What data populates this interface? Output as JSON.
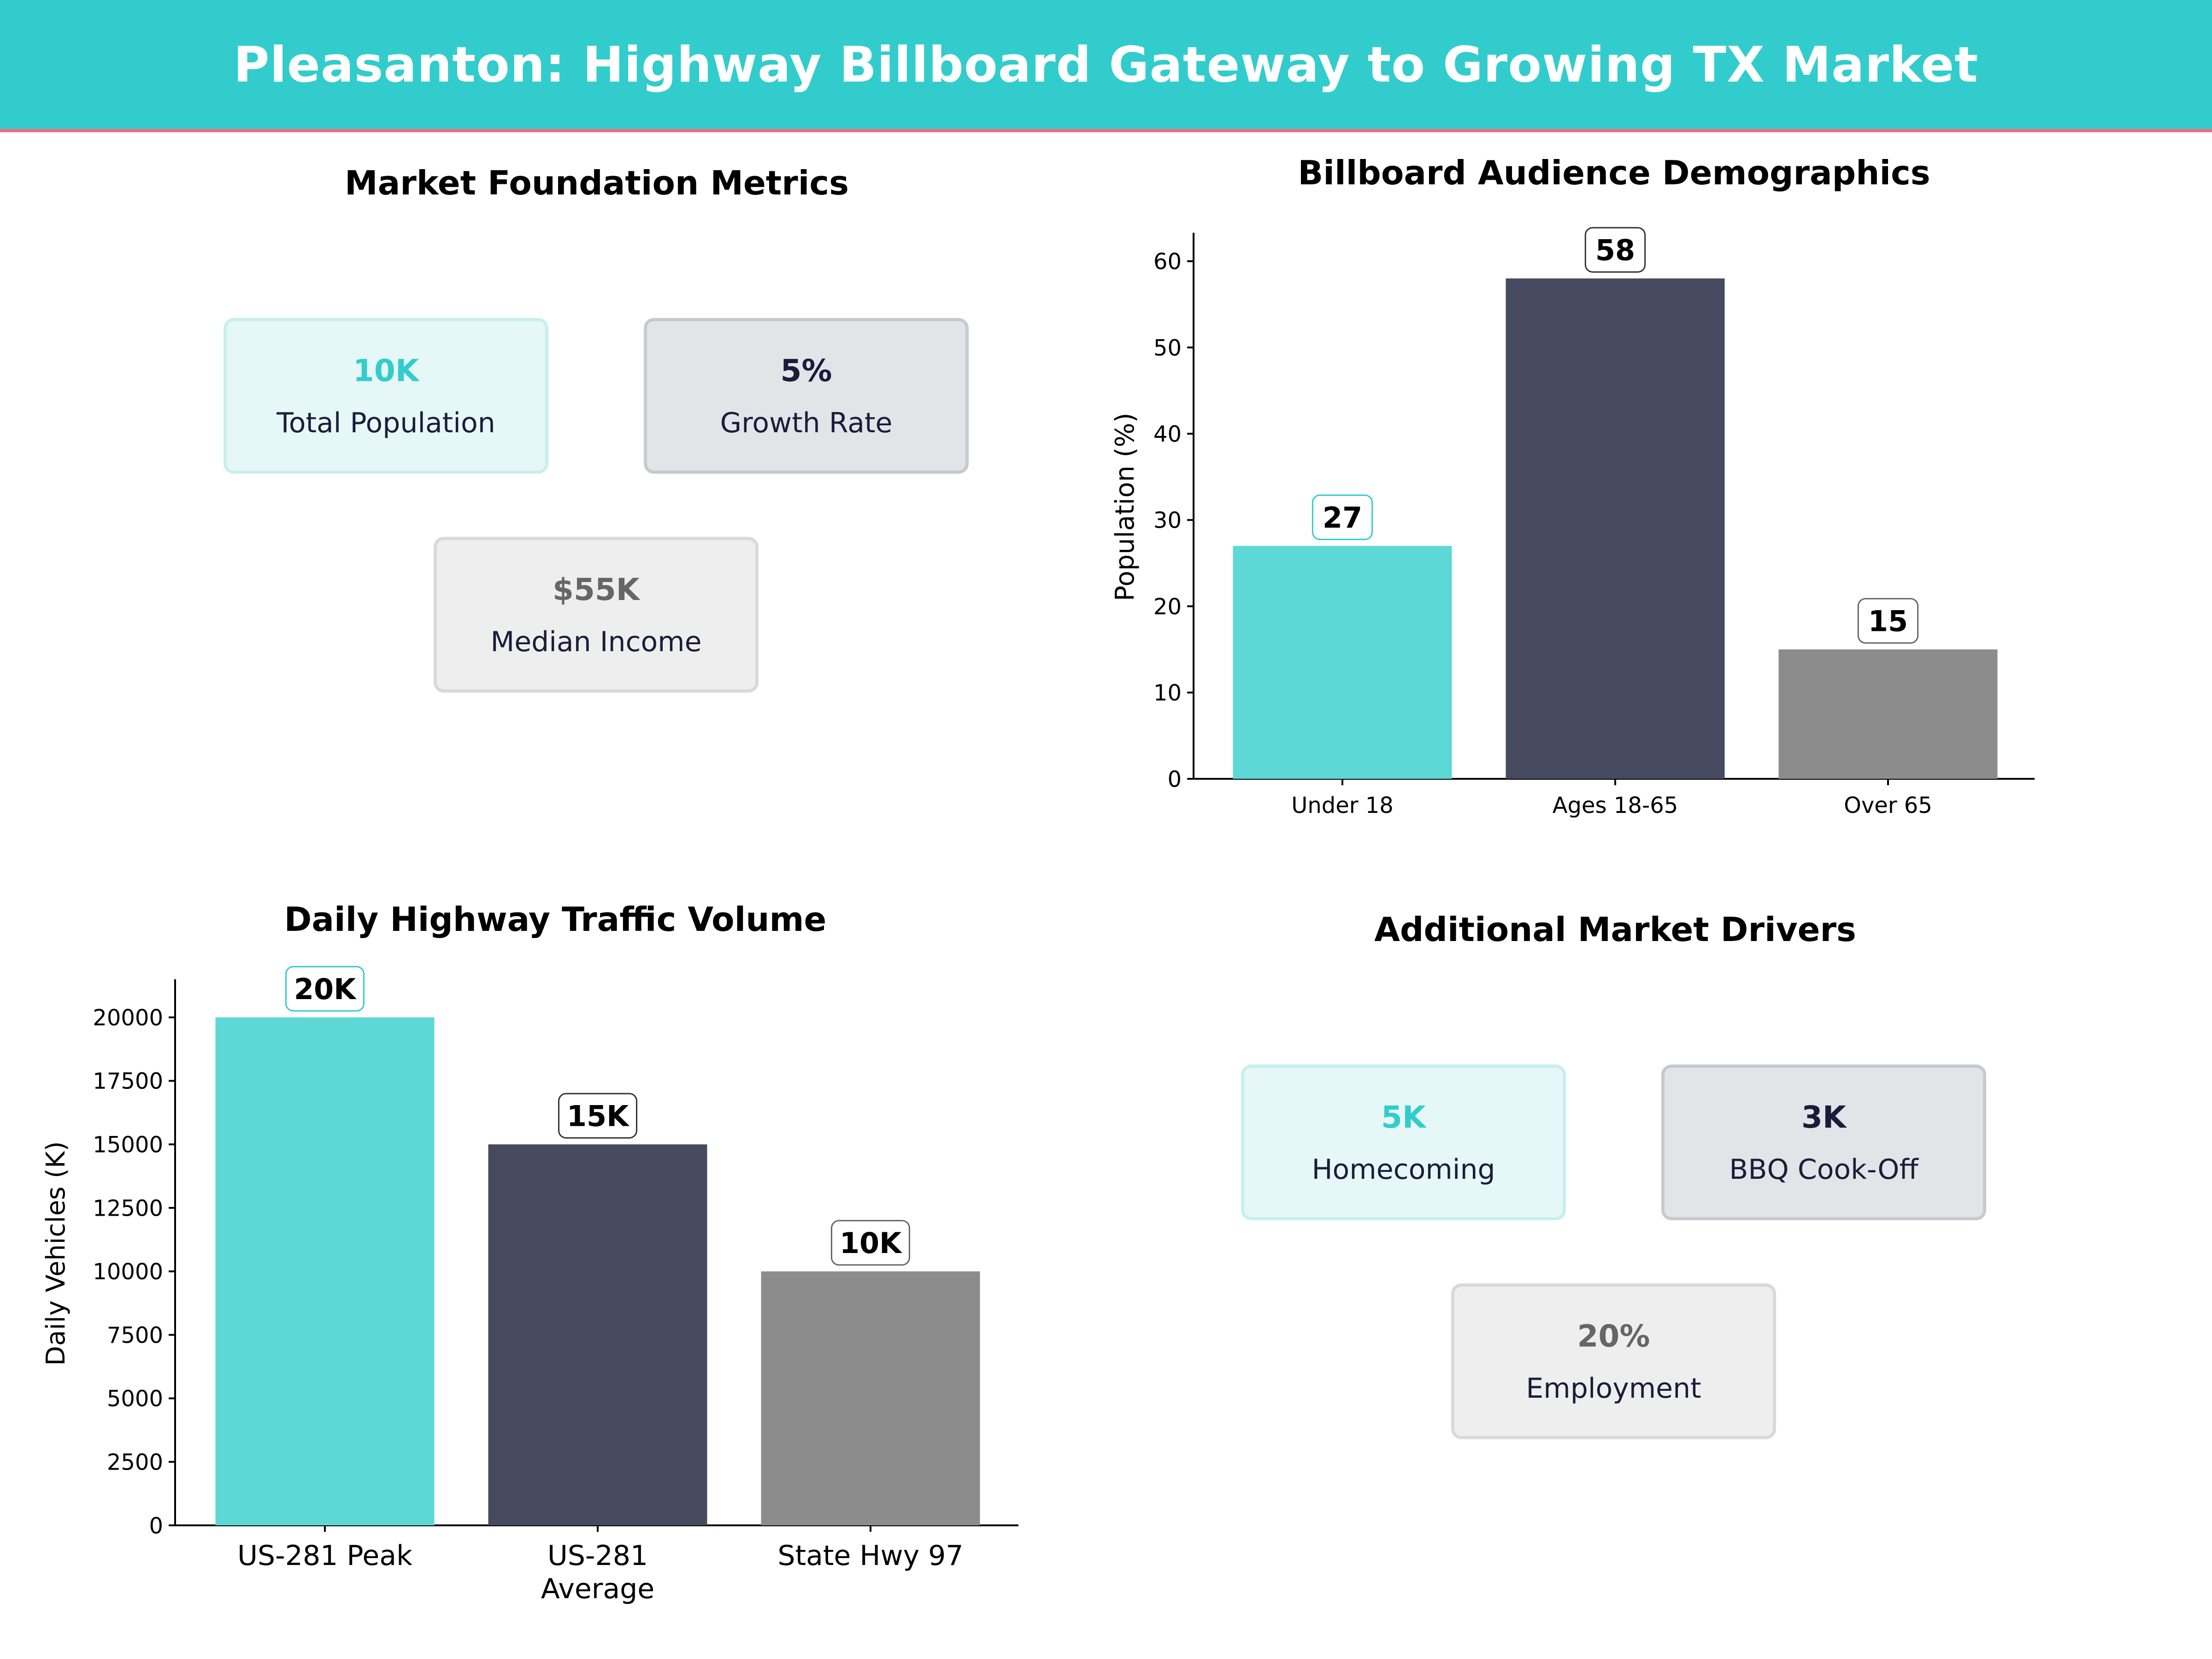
{
  "header": {
    "title": "Pleasanton: Highway Billboard Gateway to Growing TX Market"
  },
  "foundation": {
    "title": "Market Foundation Metrics",
    "cards": [
      {
        "value": "10K",
        "label": "Total Population"
      },
      {
        "value": "5%",
        "label": "Growth Rate"
      },
      {
        "value": "$55K",
        "label": "Median Income"
      }
    ]
  },
  "drivers": {
    "title": "Additional Market Drivers",
    "cards": [
      {
        "value": "5K",
        "label": "Homecoming"
      },
      {
        "value": "3K",
        "label": "BBQ Cook-Off"
      },
      {
        "value": "20%",
        "label": "Employment"
      }
    ]
  },
  "colors": {
    "teal": "#5dd8d6",
    "navy": "#454a5f",
    "gray": "#8c8c8c",
    "banner": "#33cccc",
    "accent": "#ee6d80"
  },
  "chart_data": [
    {
      "type": "bar",
      "title": "Billboard Audience Demographics",
      "categories": [
        "Under 18",
        "Ages 18-65",
        "Over 65"
      ],
      "values": [
        27,
        58,
        15
      ],
      "labels": [
        "27",
        "58",
        "15"
      ],
      "ylabel": "Population (%)",
      "xlabel": "",
      "ylim": [
        0,
        63.3
      ],
      "yticks": [
        0,
        10,
        20,
        30,
        40,
        50,
        60
      ],
      "ytick_labels": [
        "0",
        "10",
        "20",
        "30",
        "40",
        "50",
        "60"
      ],
      "grid": false
    },
    {
      "type": "bar",
      "title": "Daily Highway Traffic Volume",
      "categories": [
        "US-281 Peak",
        "US-281 Average",
        "State Hwy 97"
      ],
      "category_lines": [
        [
          "US-281 Peak"
        ],
        [
          "US-281",
          "Average"
        ],
        [
          "State Hwy 97"
        ]
      ],
      "values": [
        20000,
        15000,
        10000
      ],
      "labels": [
        "20K",
        "15K",
        "10K"
      ],
      "ylabel": "Daily Vehicles (K)",
      "xlabel": "",
      "ylim": [
        0,
        21500
      ],
      "yticks": [
        0,
        2500,
        5000,
        7500,
        10000,
        12500,
        15000,
        17500,
        20000
      ],
      "ytick_labels": [
        "0",
        "2500",
        "5000",
        "7500",
        "10000",
        "12500",
        "15000",
        "17500",
        "20000"
      ],
      "grid": false
    }
  ]
}
